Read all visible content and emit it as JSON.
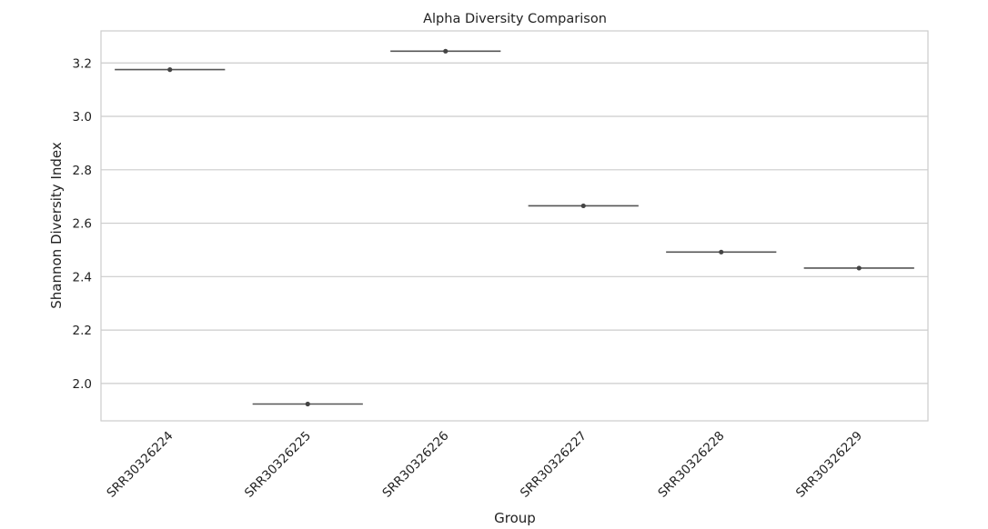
{
  "chart_data": {
    "type": "box",
    "title": "Alpha Diversity Comparison",
    "xlabel": "Group",
    "ylabel": "Shannon Diversity Index",
    "categories": [
      "SRR30326224",
      "SRR30326225",
      "SRR30326226",
      "SRR30326227",
      "SRR30326228",
      "SRR30326229"
    ],
    "values": [
      3.175,
      1.923,
      3.244,
      2.665,
      2.492,
      2.432
    ],
    "yticks": [
      2.0,
      2.2,
      2.4,
      2.6,
      2.8,
      3.0,
      3.2
    ],
    "ytick_labels": [
      "2.0",
      "2.2",
      "2.4",
      "2.6",
      "2.8",
      "3.0",
      "3.2"
    ],
    "ylim": [
      1.86,
      3.32
    ],
    "grid": true,
    "colors": {
      "grid": "#cccccc",
      "frame": "#cccccc",
      "box": "#555555",
      "point": "#444444"
    }
  }
}
